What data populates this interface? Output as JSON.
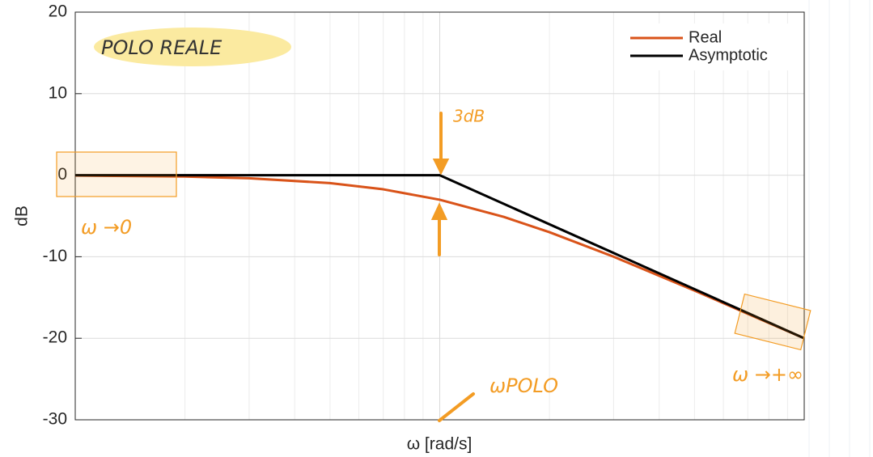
{
  "chart_data": {
    "type": "line",
    "xlabel": "ω [rad/s]",
    "ylabel": "dB",
    "xscale": "log",
    "xlim": [
      0.1,
      10
    ],
    "ylim": [
      -30,
      20
    ],
    "yticks": [
      -30,
      -20,
      -10,
      0,
      10,
      20
    ],
    "grid": true,
    "legend": "upper right",
    "series": [
      {
        "name": "Real",
        "color": "#d95319",
        "x": [
          0.1,
          0.2,
          0.3,
          0.5,
          0.7,
          1,
          1.5,
          2,
          3,
          5,
          7,
          10
        ],
        "values": [
          -0.04,
          -0.17,
          -0.37,
          -0.97,
          -1.73,
          -3.01,
          -5.12,
          -6.99,
          -10,
          -14.15,
          -17,
          -20
        ]
      },
      {
        "name": "Asymptotic",
        "color": "#000000",
        "x": [
          0.1,
          1,
          10
        ],
        "values": [
          0,
          0,
          -20
        ]
      }
    ],
    "annotations": [
      "POLO REALE",
      "3dB",
      "ω →0",
      "ω →+∞",
      "ωPOLO"
    ]
  }
}
